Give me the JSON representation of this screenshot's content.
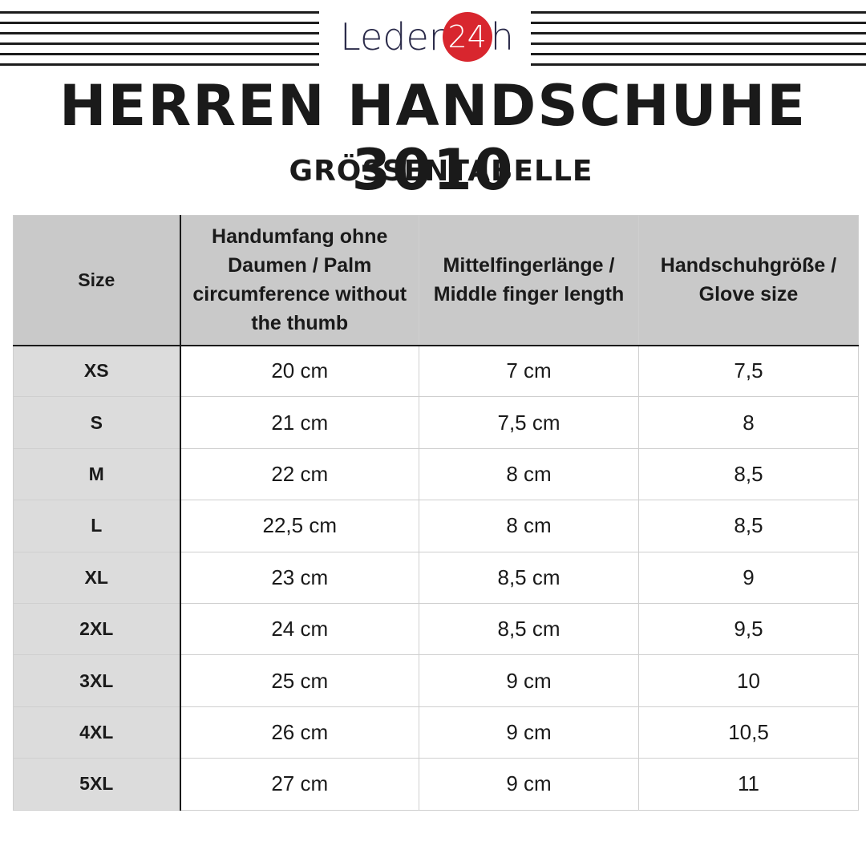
{
  "logo": {
    "text": "Leder",
    "number": "24",
    "suffix": "h",
    "circle_color": "#d8262e"
  },
  "title": "HERREN HANDSCHUHE 3010",
  "subtitle": "GRÖSSENTABELLE",
  "table": {
    "headers": [
      "Size",
      "Handumfang ohne Daumen / Palm circumference without the thumb",
      "Mittelfingerlänge / Middle finger length",
      "Handschuhgröße / Glove size"
    ],
    "rows": [
      [
        "XS",
        "20 cm",
        "7 cm",
        "7,5"
      ],
      [
        "S",
        "21 cm",
        "7,5 cm",
        "8"
      ],
      [
        "M",
        "22 cm",
        "8 cm",
        "8,5"
      ],
      [
        "L",
        "22,5 cm",
        "8 cm",
        "8,5"
      ],
      [
        "XL",
        "23 cm",
        "8,5 cm",
        "9"
      ],
      [
        "2XL",
        "24 cm",
        "8,5 cm",
        "9,5"
      ],
      [
        "3XL",
        "25 cm",
        "9 cm",
        "10"
      ],
      [
        "4XL",
        "26 cm",
        "9 cm",
        "10,5"
      ],
      [
        "5XL",
        "27 cm",
        "9 cm",
        "11"
      ]
    ]
  },
  "colors": {
    "header_bg": "#c9c9c9",
    "size_column_bg": "#dcdcdc",
    "text": "#1a1a1a"
  }
}
